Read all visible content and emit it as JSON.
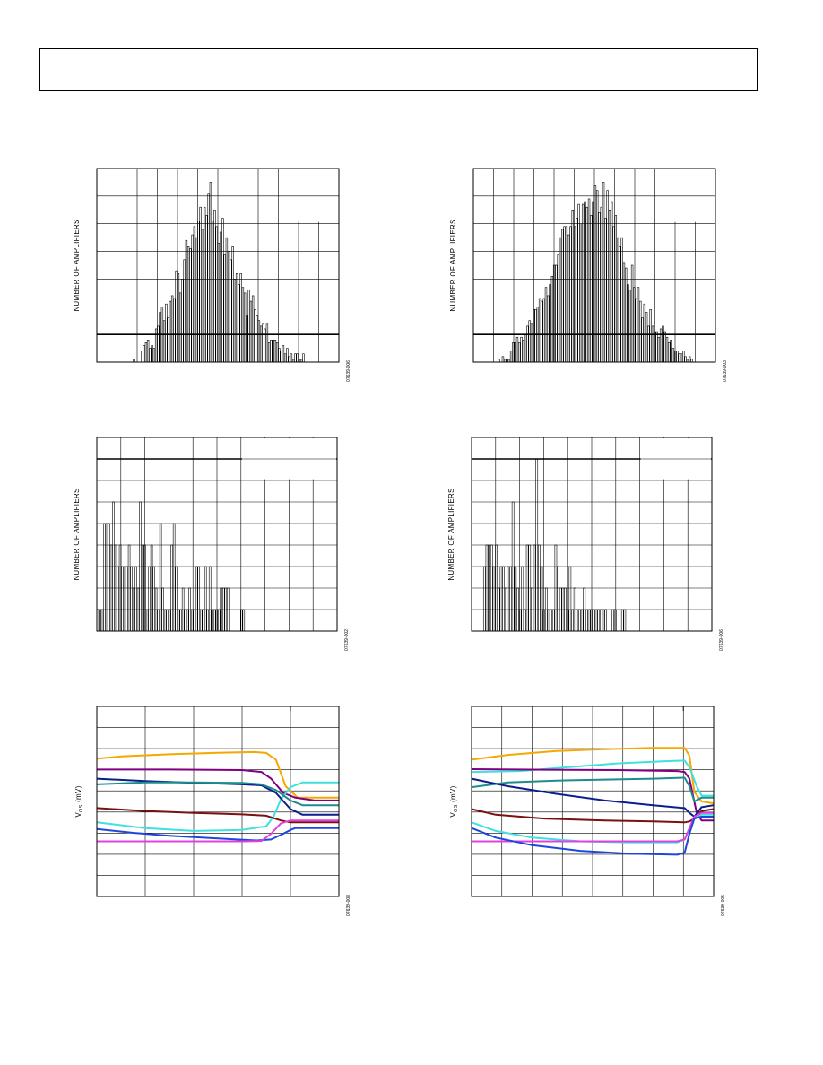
{
  "page": {
    "header_text": ""
  },
  "charts": [
    {
      "id": "hist-1",
      "type": "histogram",
      "ylabel": "NUMBER OF AMPLIFIERS",
      "fig_id": "07639-006",
      "grid": {
        "cols": 12,
        "rows": 7
      },
      "bold_row_line": 6,
      "legend_cols": [
        9,
        12
      ],
      "legend_rows": [
        0,
        1
      ],
      "values": [
        0,
        0,
        0,
        0,
        0,
        0,
        0,
        0,
        0,
        0,
        0,
        0,
        0,
        0,
        0,
        0,
        0,
        0,
        1,
        0,
        0,
        0,
        4,
        6,
        7,
        8,
        5,
        6,
        5,
        12,
        13,
        18,
        20,
        15,
        21,
        16,
        22,
        24,
        23,
        33,
        32,
        25,
        30,
        37,
        44,
        42,
        41,
        46,
        49,
        45,
        51,
        56,
        48,
        56,
        53,
        61,
        65,
        51,
        55,
        49,
        43,
        47,
        52,
        39,
        45,
        40,
        37,
        42,
        30,
        32,
        28,
        32,
        27,
        25,
        17,
        26,
        22,
        24,
        19,
        17,
        15,
        13,
        14,
        12,
        14,
        7,
        8,
        8,
        8,
        7,
        5,
        4,
        6,
        3,
        5,
        2,
        3,
        1,
        3,
        3,
        1,
        1,
        3,
        0,
        0,
        0,
        0,
        0,
        0,
        0,
        0,
        0,
        0,
        0,
        0,
        0,
        0,
        0,
        0,
        0
      ],
      "ymax": 70
    },
    {
      "id": "hist-2",
      "type": "histogram",
      "ylabel": "NUMBER OF AMPLIFIERS",
      "fig_id": "07639-003",
      "grid": {
        "cols": 12,
        "rows": 7
      },
      "bold_row_line": 6,
      "legend_cols": [
        9,
        12
      ],
      "legend_rows": [
        0,
        1
      ],
      "values": [
        0,
        0,
        0,
        0,
        0,
        0,
        0,
        0,
        0,
        0,
        0,
        0,
        1,
        0,
        2,
        1,
        1,
        1,
        4,
        7,
        7,
        9,
        7,
        9,
        8,
        10,
        13,
        15,
        14,
        19,
        19,
        20,
        23,
        22,
        23,
        27,
        24,
        28,
        31,
        35,
        35,
        39,
        45,
        48,
        49,
        49,
        46,
        49,
        55,
        49,
        52,
        57,
        50,
        57,
        58,
        56,
        59,
        53,
        58,
        64,
        62,
        54,
        56,
        65,
        52,
        62,
        55,
        58,
        49,
        53,
        45,
        42,
        45,
        36,
        34,
        28,
        26,
        35,
        27,
        23,
        27,
        22,
        16,
        21,
        18,
        13,
        19,
        13,
        11,
        11,
        9,
        12,
        13,
        11,
        9,
        7,
        8,
        5,
        4,
        4,
        3,
        3,
        4,
        2,
        1,
        2,
        1,
        0,
        0,
        0,
        0,
        0,
        0,
        0,
        0,
        0,
        0,
        0
      ],
      "ymax": 70
    },
    {
      "id": "hist-3",
      "type": "histogram",
      "ylabel": "NUMBER OF AMPLIFIERS",
      "fig_id": "07639-002",
      "grid": {
        "cols": 10,
        "rows": 9
      },
      "bold_row_line": 1,
      "legend_cols": [
        6,
        10
      ],
      "legend_rows": [
        0,
        1
      ],
      "values": [
        1,
        1,
        1,
        5,
        5,
        5,
        4,
        6,
        4,
        3,
        4,
        3,
        3,
        3,
        4,
        3,
        2,
        3,
        2,
        6,
        4,
        4,
        1,
        3,
        4,
        3,
        2,
        1,
        5,
        2,
        1,
        1,
        1,
        4,
        5,
        3,
        1,
        1,
        2,
        1,
        1,
        2,
        1,
        1,
        3,
        3,
        1,
        1,
        3,
        1,
        3,
        1,
        1,
        1,
        1,
        2,
        2,
        2,
        2,
        0,
        0,
        0,
        0,
        0,
        1,
        1,
        0,
        0,
        0,
        0,
        0,
        0,
        0,
        0,
        0,
        0,
        0,
        0,
        0,
        0,
        0,
        0,
        0,
        0,
        0,
        0,
        0,
        0,
        0,
        0,
        0,
        0,
        0,
        0,
        0,
        0,
        0,
        0,
        0,
        0,
        0,
        0,
        0,
        0,
        0,
        0,
        0
      ],
      "ymax": 9
    },
    {
      "id": "hist-4",
      "type": "histogram",
      "ylabel": "NUMBER OF AMPLIFIERS",
      "fig_id": "07639-006",
      "grid": {
        "cols": 10,
        "rows": 9
      },
      "bold_row_line": 1,
      "legend_cols": [
        7,
        10
      ],
      "legend_rows": [
        0,
        1
      ],
      "values": [
        0,
        0,
        0,
        0,
        0,
        3,
        4,
        4,
        4,
        3,
        4,
        2,
        3,
        3,
        2,
        3,
        3,
        6,
        3,
        2,
        1,
        3,
        1,
        4,
        4,
        2,
        4,
        8,
        4,
        3,
        1,
        2,
        1,
        1,
        1,
        4,
        3,
        2,
        2,
        2,
        1,
        3,
        1,
        2,
        1,
        1,
        1,
        2,
        1,
        1,
        1,
        1,
        1,
        1,
        1,
        1,
        1,
        0,
        0,
        1,
        1,
        0,
        0,
        1,
        1,
        0,
        0,
        0,
        0,
        0,
        0,
        0,
        0,
        0,
        0,
        0,
        0,
        0,
        0,
        0,
        0,
        0,
        0,
        0,
        0,
        0,
        0,
        0,
        0,
        0,
        0,
        0,
        0,
        0,
        0,
        0,
        0,
        0,
        0,
        0,
        0
      ],
      "ymax": 9
    },
    {
      "id": "vos-1",
      "type": "line",
      "ylabel": "V",
      "ylabel_sub": "OS",
      "ylabel_unit": "(mV)",
      "fig_id": "07639-008",
      "grid": {
        "cols": 5,
        "rows": 9
      },
      "tick_col": 4,
      "x_range": [
        0,
        1
      ],
      "y_range": [
        0,
        1
      ],
      "series": [
        {
          "color": "#F5A800",
          "points": [
            [
              0,
              0.725
            ],
            [
              0.1,
              0.737
            ],
            [
              0.3,
              0.748
            ],
            [
              0.5,
              0.756
            ],
            [
              0.65,
              0.76
            ],
            [
              0.7,
              0.755
            ],
            [
              0.74,
              0.72
            ],
            [
              0.78,
              0.58
            ],
            [
              0.83,
              0.52
            ],
            [
              0.9,
              0.52
            ],
            [
              1,
              0.52
            ]
          ]
        },
        {
          "color": "#800080",
          "points": [
            [
              0,
              0.668
            ],
            [
              0.3,
              0.668
            ],
            [
              0.6,
              0.665
            ],
            [
              0.68,
              0.655
            ],
            [
              0.72,
              0.62
            ],
            [
              0.77,
              0.545
            ],
            [
              0.82,
              0.52
            ],
            [
              0.9,
              0.505
            ],
            [
              1,
              0.505
            ]
          ]
        },
        {
          "color": "#40E0E0",
          "points": [
            [
              0,
              0.39
            ],
            [
              0.2,
              0.36
            ],
            [
              0.4,
              0.345
            ],
            [
              0.6,
              0.35
            ],
            [
              0.7,
              0.37
            ],
            [
              0.73,
              0.42
            ],
            [
              0.76,
              0.51
            ],
            [
              0.8,
              0.575
            ],
            [
              0.85,
              0.6
            ],
            [
              0.9,
              0.6
            ],
            [
              1,
              0.6
            ]
          ]
        },
        {
          "color": "#0A1E8C",
          "points": [
            [
              0,
              0.62
            ],
            [
              0.2,
              0.607
            ],
            [
              0.4,
              0.598
            ],
            [
              0.6,
              0.59
            ],
            [
              0.68,
              0.585
            ],
            [
              0.74,
              0.545
            ],
            [
              0.8,
              0.46
            ],
            [
              0.85,
              0.43
            ],
            [
              1,
              0.43
            ]
          ]
        },
        {
          "color": "#1E8C8C",
          "points": [
            [
              0,
              0.59
            ],
            [
              0.2,
              0.6
            ],
            [
              0.4,
              0.6
            ],
            [
              0.6,
              0.598
            ],
            [
              0.68,
              0.59
            ],
            [
              0.74,
              0.56
            ],
            [
              0.8,
              0.505
            ],
            [
              0.85,
              0.48
            ],
            [
              1,
              0.48
            ]
          ]
        },
        {
          "color": "#7A1010",
          "points": [
            [
              0,
              0.465
            ],
            [
              0.2,
              0.45
            ],
            [
              0.4,
              0.44
            ],
            [
              0.6,
              0.432
            ],
            [
              0.7,
              0.425
            ],
            [
              0.76,
              0.4
            ],
            [
              0.8,
              0.39
            ],
            [
              0.85,
              0.39
            ],
            [
              1,
              0.39
            ]
          ]
        },
        {
          "color": "#1E46DC",
          "points": [
            [
              0,
              0.355
            ],
            [
              0.15,
              0.335
            ],
            [
              0.3,
              0.32
            ],
            [
              0.5,
              0.305
            ],
            [
              0.66,
              0.295
            ],
            [
              0.72,
              0.3
            ],
            [
              0.77,
              0.33
            ],
            [
              0.8,
              0.35
            ],
            [
              0.82,
              0.36
            ],
            [
              1,
              0.36
            ]
          ]
        },
        {
          "color": "#E040E0",
          "points": [
            [
              0,
              0.29
            ],
            [
              0.3,
              0.29
            ],
            [
              0.6,
              0.29
            ],
            [
              0.68,
              0.292
            ],
            [
              0.72,
              0.33
            ],
            [
              0.76,
              0.385
            ],
            [
              0.8,
              0.4
            ],
            [
              0.85,
              0.4
            ],
            [
              1,
              0.4
            ]
          ]
        }
      ]
    },
    {
      "id": "vos-2",
      "type": "line",
      "ylabel": "V",
      "ylabel_sub": "OS",
      "ylabel_unit": "(mV)",
      "fig_id": "07639-005",
      "grid": {
        "cols": 8,
        "rows": 9
      },
      "tick_col": 7,
      "x_range": [
        0,
        1
      ],
      "y_range": [
        0,
        1
      ],
      "series": [
        {
          "color": "#F5A800",
          "points": [
            [
              0,
              0.72
            ],
            [
              0.15,
              0.745
            ],
            [
              0.35,
              0.765
            ],
            [
              0.55,
              0.775
            ],
            [
              0.75,
              0.782
            ],
            [
              0.88,
              0.782
            ],
            [
              0.9,
              0.74
            ],
            [
              0.92,
              0.55
            ],
            [
              0.95,
              0.5
            ],
            [
              1,
              0.49
            ]
          ]
        },
        {
          "color": "#40E0E0",
          "points": [
            [
              0,
              0.655
            ],
            [
              0.2,
              0.66
            ],
            [
              0.4,
              0.68
            ],
            [
              0.6,
              0.7
            ],
            [
              0.8,
              0.712
            ],
            [
              0.88,
              0.715
            ],
            [
              0.9,
              0.68
            ],
            [
              0.93,
              0.58
            ],
            [
              0.95,
              0.53
            ],
            [
              1,
              0.53
            ]
          ]
        },
        {
          "color": "#800080",
          "points": [
            [
              0,
              0.67
            ],
            [
              0.3,
              0.667
            ],
            [
              0.6,
              0.665
            ],
            [
              0.85,
              0.66
            ],
            [
              0.88,
              0.655
            ],
            [
              0.9,
              0.62
            ],
            [
              0.93,
              0.44
            ],
            [
              0.95,
              0.4
            ],
            [
              1,
              0.4
            ]
          ]
        },
        {
          "color": "#1E8C8C",
          "points": [
            [
              0,
              0.575
            ],
            [
              0.15,
              0.6
            ],
            [
              0.35,
              0.61
            ],
            [
              0.55,
              0.615
            ],
            [
              0.75,
              0.62
            ],
            [
              0.88,
              0.625
            ],
            [
              0.9,
              0.58
            ],
            [
              0.92,
              0.5
            ],
            [
              0.95,
              0.52
            ],
            [
              1,
              0.52
            ]
          ]
        },
        {
          "color": "#0A1E8C",
          "points": [
            [
              0,
              0.62
            ],
            [
              0.15,
              0.58
            ],
            [
              0.35,
              0.54
            ],
            [
              0.55,
              0.505
            ],
            [
              0.75,
              0.48
            ],
            [
              0.88,
              0.465
            ],
            [
              0.9,
              0.44
            ],
            [
              0.92,
              0.42
            ],
            [
              0.95,
              0.47
            ],
            [
              1,
              0.48
            ]
          ]
        },
        {
          "color": "#7A1010",
          "points": [
            [
              0,
              0.46
            ],
            [
              0.1,
              0.43
            ],
            [
              0.3,
              0.41
            ],
            [
              0.55,
              0.4
            ],
            [
              0.75,
              0.395
            ],
            [
              0.88,
              0.39
            ],
            [
              0.9,
              0.395
            ],
            [
              0.92,
              0.41
            ],
            [
              0.95,
              0.45
            ],
            [
              1,
              0.46
            ]
          ]
        },
        {
          "color": "#40E0E0",
          "points": [
            [
              0,
              0.39
            ],
            [
              0.1,
              0.345
            ],
            [
              0.25,
              0.31
            ],
            [
              0.45,
              0.29
            ],
            [
              0.65,
              0.285
            ],
            [
              0.85,
              0.285
            ],
            [
              0.88,
              0.3
            ],
            [
              0.9,
              0.35
            ],
            [
              0.92,
              0.41
            ],
            [
              0.95,
              0.43
            ],
            [
              1,
              0.43
            ]
          ]
        },
        {
          "color": "#E040E0",
          "points": [
            [
              0,
              0.29
            ],
            [
              0.3,
              0.29
            ],
            [
              0.6,
              0.29
            ],
            [
              0.85,
              0.29
            ],
            [
              0.88,
              0.3
            ],
            [
              0.9,
              0.36
            ],
            [
              0.92,
              0.42
            ],
            [
              0.95,
              0.44
            ],
            [
              1,
              0.44
            ]
          ]
        },
        {
          "color": "#1E46DC",
          "points": [
            [
              0,
              0.36
            ],
            [
              0.1,
              0.31
            ],
            [
              0.25,
              0.27
            ],
            [
              0.45,
              0.24
            ],
            [
              0.65,
              0.225
            ],
            [
              0.85,
              0.22
            ],
            [
              0.88,
              0.23
            ],
            [
              0.9,
              0.33
            ],
            [
              0.92,
              0.41
            ],
            [
              0.95,
              0.42
            ],
            [
              1,
              0.42
            ]
          ]
        }
      ]
    }
  ]
}
